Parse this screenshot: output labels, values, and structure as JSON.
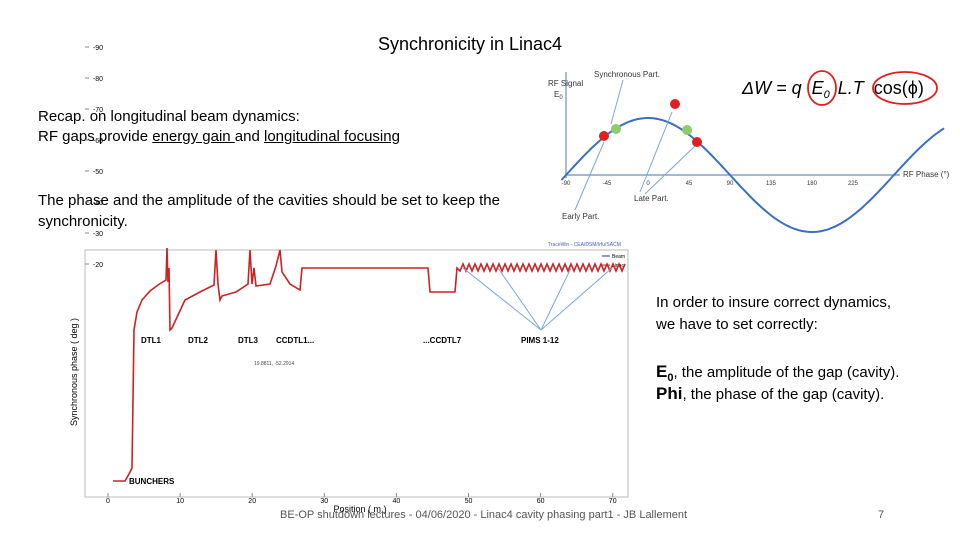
{
  "title": "Synchronicity in Linac4",
  "recap": {
    "line1": "Recap. on longitudinal beam dynamics:",
    "line2_a": "RF gaps provide ",
    "line2_b": "energy gain ",
    "line2_c": "and ",
    "line2_d": "longitudinal focusing"
  },
  "phase_text": {
    "line1": "The phase and the amplitude of the cavities should be set to keep the",
    "line2": "synchronicity."
  },
  "sine_figure": {
    "y_label": "RF Signal",
    "y_label_symbol": "E",
    "y_label_sub": "0",
    "synchronous": "Synchronous Part.",
    "early": "Early Part.",
    "late": "Late Part.",
    "x_label": "RF Phase (°)",
    "xticks": [
      -90,
      -45,
      0,
      45,
      90,
      135,
      180,
      225
    ]
  },
  "equation": {
    "lhs": "ΔW = q",
    "e": "E",
    "e_sub": "0",
    "mid": "L.T",
    "cos": "cos(ϕ)"
  },
  "phase_plot": {
    "header": "TraceWin - CEA/DSM/Irfu/SACM",
    "legend": [
      "Beam",
      "Linac"
    ],
    "y_label": "Synchronous phase ( deg )",
    "x_label": "Position ( m )",
    "yticks": [
      -20,
      -30,
      -40,
      -50,
      -60,
      -70,
      -80,
      -90
    ],
    "xticks": [
      0,
      10,
      20,
      30,
      40,
      50,
      60,
      70
    ],
    "labels": {
      "dtl1": "DTL1",
      "dtl2": "DTL2",
      "dtl3": "DTL3",
      "ccdtl1": "CCDTL1...",
      "ccdtl7": "...CCDTL7",
      "pims": "PIMS 1-12",
      "bunchers": "BUNCHERS",
      "cursor": "19.8811, -52.2914"
    }
  },
  "right_text": {
    "line1": "In order to insure correct dynamics,",
    "line2": "we have to set correctly:",
    "e0_symbol": "E",
    "e0_sub": "0",
    "e0_rest": ", the amplitude of the gap (cavity).",
    "phi_symbol": "Phi",
    "phi_rest": ", the phase of the gap (cavity)."
  },
  "footer": "BE-OP shutdown lectures - 04/06/2020 - Linac4  cavity phasing part1 - JB Lallement",
  "page_number": "7"
}
